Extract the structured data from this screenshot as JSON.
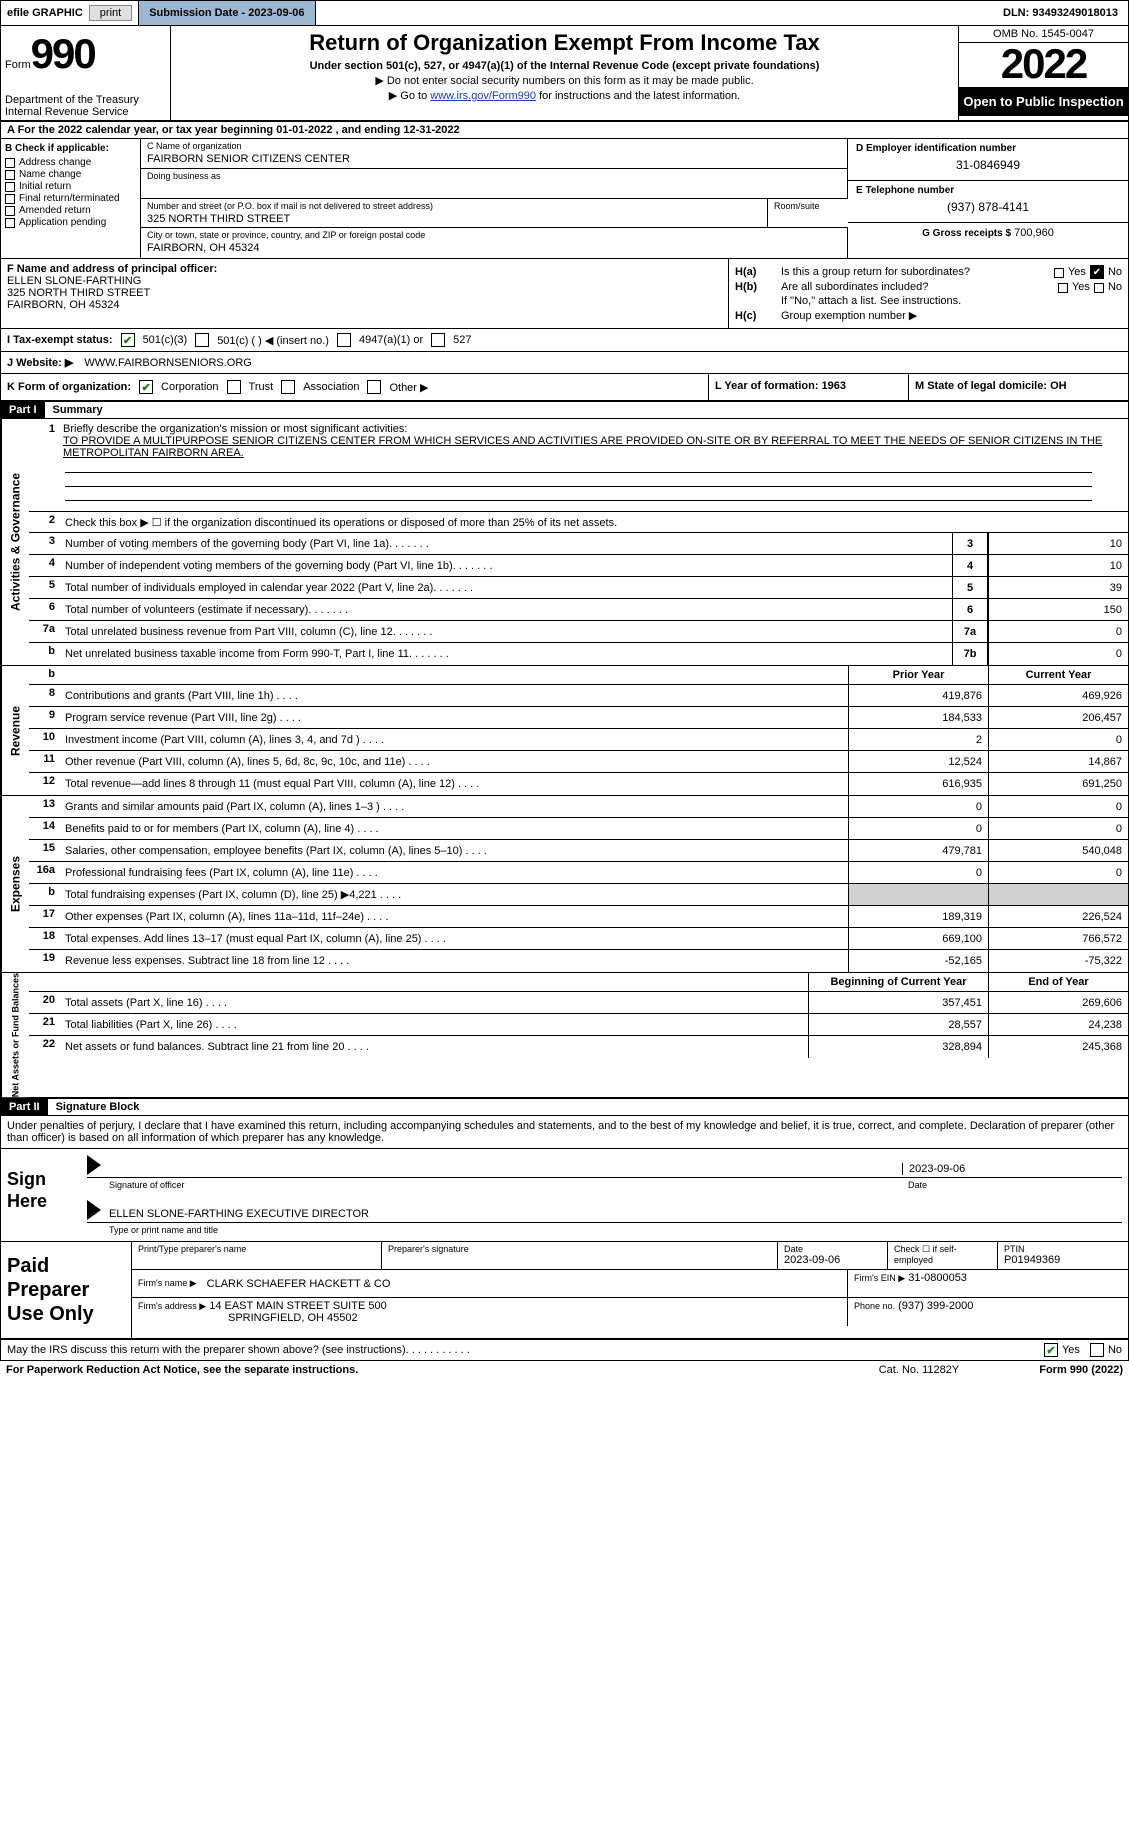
{
  "topbar": {
    "efile_label": "efile GRAPHIC",
    "print": "print",
    "sub_date_label": "Submission Date - 2023-09-06",
    "dln": "DLN: 93493249018013"
  },
  "header": {
    "form_word": "Form",
    "form_num": "990",
    "dept": "Department of the Treasury Internal Revenue Service",
    "title": "Return of Organization Exempt From Income Tax",
    "sub1": "Under section 501(c), 527, or 4947(a)(1) of the Internal Revenue Code (except private foundations)",
    "sub2": "▶ Do not enter social security numbers on this form as it may be made public.",
    "sub3_pre": "▶ Go to ",
    "sub3_link": "www.irs.gov/Form990",
    "sub3_post": " for instructions and the latest information.",
    "omb": "OMB No. 1545-0047",
    "year": "2022",
    "open": "Open to Public Inspection"
  },
  "rowA": "A For the 2022 calendar year, or tax year beginning 01-01-2022    , and ending 12-31-2022",
  "B": {
    "head": "B Check if applicable:",
    "items": [
      "Address change",
      "Name change",
      "Initial return",
      "Final return/terminated",
      "Amended return",
      "Application pending"
    ]
  },
  "C": {
    "name_label": "C Name of organization",
    "name": "FAIRBORN SENIOR CITIZENS CENTER",
    "dba_label": "Doing business as",
    "dba": "",
    "street_label": "Number and street (or P.O. box if mail is not delivered to street address)",
    "street": "325 NORTH THIRD STREET",
    "room_label": "Room/suite",
    "room": "",
    "city_label": "City or town, state or province, country, and ZIP or foreign postal code",
    "city": "FAIRBORN, OH  45324"
  },
  "D": {
    "label": "D Employer identification number",
    "val": "31-0846949"
  },
  "E": {
    "label": "E Telephone number",
    "val": "(937) 878-4141"
  },
  "G": {
    "label": "G Gross receipts $",
    "val": "700,960"
  },
  "F": {
    "label": "F  Name and address of principal officer:",
    "name": "ELLEN SLONE-FARTHING",
    "street": "325 NORTH THIRD STREET",
    "city": "FAIRBORN, OH  45324"
  },
  "H": {
    "a_label": "H(a)",
    "a_text": "Is this a group return for subordinates?",
    "b_label": "H(b)",
    "b_text": "Are all subordinates included?",
    "b_note": "If \"No,\" attach a list. See instructions.",
    "c_label": "H(c)",
    "c_text": "Group exemption number ▶",
    "yes": "Yes",
    "no": "No"
  },
  "I": {
    "label": "I   Tax-exempt status:",
    "o1": "501(c)(3)",
    "o2": "501(c) (  ) ◀ (insert no.)",
    "o3": "4947(a)(1) or",
    "o4": "527"
  },
  "J": {
    "label": "J   Website: ▶",
    "val": "WWW.FAIRBORNSENIORS.ORG"
  },
  "K": {
    "label": "K Form of organization:",
    "o1": "Corporation",
    "o2": "Trust",
    "o3": "Association",
    "o4": "Other ▶"
  },
  "L": {
    "label": "L Year of formation: 1963"
  },
  "M": {
    "label": "M State of legal domicile: OH"
  },
  "part1": {
    "hdr": "Part I",
    "title": "Summary"
  },
  "brief": {
    "num": "1",
    "label": "Briefly describe the organization's mission or most significant activities:",
    "text": "TO PROVIDE A MULTIPURPOSE SENIOR CITIZENS CENTER FROM WHICH SERVICES AND ACTIVITIES ARE PROVIDED ON-SITE OR BY REFERRAL TO MEET THE NEEDS OF SENIOR CITIZENS IN THE METROPOLITAN FAIRBORN AREA."
  },
  "line2": {
    "num": "2",
    "text": "Check this box ▶ ☐ if the organization discontinued its operations or disposed of more than 25% of its net assets."
  },
  "ag_lines": [
    {
      "num": "3",
      "text": "Number of voting members of the governing body (Part VI, line 1a)",
      "box": "3",
      "val": "10"
    },
    {
      "num": "4",
      "text": "Number of independent voting members of the governing body (Part VI, line 1b)",
      "box": "4",
      "val": "10"
    },
    {
      "num": "5",
      "text": "Total number of individuals employed in calendar year 2022 (Part V, line 2a)",
      "box": "5",
      "val": "39"
    },
    {
      "num": "6",
      "text": "Total number of volunteers (estimate if necessary)",
      "box": "6",
      "val": "150"
    },
    {
      "num": "7a",
      "text": "Total unrelated business revenue from Part VIII, column (C), line 12",
      "box": "7a",
      "val": "0"
    },
    {
      "num": "b",
      "text": "Net unrelated business taxable income from Form 990-T, Part I, line 11",
      "box": "7b",
      "val": "0"
    }
  ],
  "col_hdrs": {
    "py": "Prior Year",
    "cy": "Current Year",
    "boy": "Beginning of Current Year",
    "eoy": "End of Year"
  },
  "rev_lines": [
    {
      "num": "8",
      "text": "Contributions and grants (Part VIII, line 1h)",
      "py": "419,876",
      "cy": "469,926"
    },
    {
      "num": "9",
      "text": "Program service revenue (Part VIII, line 2g)",
      "py": "184,533",
      "cy": "206,457"
    },
    {
      "num": "10",
      "text": "Investment income (Part VIII, column (A), lines 3, 4, and 7d )",
      "py": "2",
      "cy": "0"
    },
    {
      "num": "11",
      "text": "Other revenue (Part VIII, column (A), lines 5, 6d, 8c, 9c, 10c, and 11e)",
      "py": "12,524",
      "cy": "14,867"
    },
    {
      "num": "12",
      "text": "Total revenue—add lines 8 through 11 (must equal Part VIII, column (A), line 12)",
      "py": "616,935",
      "cy": "691,250"
    }
  ],
  "exp_lines": [
    {
      "num": "13",
      "text": "Grants and similar amounts paid (Part IX, column (A), lines 1–3 )",
      "py": "0",
      "cy": "0"
    },
    {
      "num": "14",
      "text": "Benefits paid to or for members (Part IX, column (A), line 4)",
      "py": "0",
      "cy": "0"
    },
    {
      "num": "15",
      "text": "Salaries, other compensation, employee benefits (Part IX, column (A), lines 5–10)",
      "py": "479,781",
      "cy": "540,048"
    },
    {
      "num": "16a",
      "text": "Professional fundraising fees (Part IX, column (A), line 11e)",
      "py": "0",
      "cy": "0"
    },
    {
      "num": "b",
      "text": "Total fundraising expenses (Part IX, column (D), line 25) ▶4,221",
      "py": "",
      "cy": "",
      "shaded": true
    },
    {
      "num": "17",
      "text": "Other expenses (Part IX, column (A), lines 11a–11d, 11f–24e)",
      "py": "189,319",
      "cy": "226,524"
    },
    {
      "num": "18",
      "text": "Total expenses. Add lines 13–17 (must equal Part IX, column (A), line 25)",
      "py": "669,100",
      "cy": "766,572"
    },
    {
      "num": "19",
      "text": "Revenue less expenses. Subtract line 18 from line 12",
      "py": "-52,165",
      "cy": "-75,322"
    }
  ],
  "na_lines": [
    {
      "num": "20",
      "text": "Total assets (Part X, line 16)",
      "py": "357,451",
      "cy": "269,606"
    },
    {
      "num": "21",
      "text": "Total liabilities (Part X, line 26)",
      "py": "28,557",
      "cy": "24,238"
    },
    {
      "num": "22",
      "text": "Net assets or fund balances. Subtract line 21 from line 20",
      "py": "328,894",
      "cy": "245,368"
    }
  ],
  "vtabs": {
    "ag": "Activities & Governance",
    "rev": "Revenue",
    "exp": "Expenses",
    "na": "Net Assets or Fund Balances"
  },
  "part2": {
    "hdr": "Part II",
    "title": "Signature Block"
  },
  "penalties": "Under penalties of perjury, I declare that I have examined this return, including accompanying schedules and statements, and to the best of my knowledge and belief, it is true, correct, and complete. Declaration of preparer (other than officer) is based on all information of which preparer has any knowledge.",
  "sign": {
    "here": "Sign Here",
    "sig_label": "Signature of officer",
    "date": "2023-09-06",
    "date_label": "Date",
    "name": "ELLEN SLONE-FARTHING  EXECUTIVE DIRECTOR",
    "name_label": "Type or print name and title"
  },
  "prep": {
    "label": "Paid Preparer Use Only",
    "h1": "Print/Type preparer's name",
    "h2": "Preparer's signature",
    "h3_label": "Date",
    "h3": "2023-09-06",
    "h4": "Check ☐ if self-employed",
    "h5_label": "PTIN",
    "h5": "P01949369",
    "firm_name_label": "Firm's name    ▶",
    "firm_name": "CLARK SCHAEFER HACKETT & CO",
    "firm_ein_label": "Firm's EIN ▶",
    "firm_ein": "31-0800053",
    "firm_addr_label": "Firm's address ▶",
    "firm_addr1": "14 EAST MAIN STREET SUITE 500",
    "firm_addr2": "SPRINGFIELD, OH  45502",
    "phone_label": "Phone no.",
    "phone": "(937) 399-2000"
  },
  "footer": {
    "discuss": "May the IRS discuss this return with the preparer shown above? (see instructions)",
    "yes": "Yes",
    "no": "No",
    "paperwork": "For Paperwork Reduction Act Notice, see the separate instructions.",
    "cat": "Cat. No. 11282Y",
    "form": "Form 990 (2022)"
  },
  "colors": {
    "header_blue": "#9db8d2",
    "link": "#1a3fb8",
    "check_green": "#1a7a1a",
    "shade": "#d0d0d0"
  }
}
